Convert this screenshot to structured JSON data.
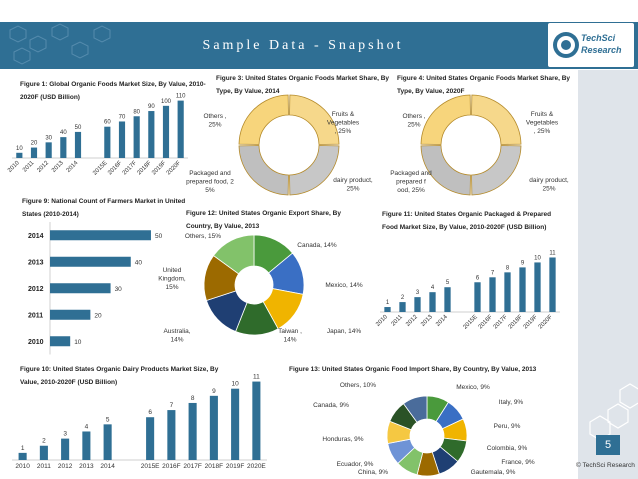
{
  "page": {
    "title": "Sample Data - Snapshot",
    "logo_line1": "TechSci",
    "logo_line2": "Research",
    "page_number": "5",
    "copyright": "© TechSci Research",
    "colors": {
      "brand": "#2f6f94",
      "bar": "#2f6f94",
      "label": "#333333"
    }
  },
  "chart_data": [
    {
      "id": "fig1",
      "type": "bar",
      "title": "Figure 1: Global Organic Foods Market Size, By Value, 2010-2020F (USD Billion)",
      "categories": [
        "2010",
        "2011",
        "2012",
        "2013",
        "2014",
        "2015E",
        "2016F",
        "2017F",
        "2018F",
        "2019F",
        "2020F"
      ],
      "values": [
        10,
        20,
        30,
        40,
        50,
        60,
        70,
        80,
        90,
        100,
        110
      ],
      "ylim": [
        0,
        115
      ]
    },
    {
      "id": "fig3",
      "type": "pie",
      "donut": true,
      "title": "Figure 3: United States Organic Foods Market Share, By Type, By Value, 2014",
      "slices": [
        {
          "label": "Fruits & Vegetables, 25%",
          "value": 25,
          "color": "#f6d88b"
        },
        {
          "label": "dairy product, 25%",
          "value": 25,
          "color": "#c7c7c7"
        },
        {
          "label": "Packaged and prepared food, 25%",
          "value": 25,
          "color": "#bfbfbf"
        },
        {
          "label": "Others , 25%",
          "value": 25,
          "color": "#f7d57c"
        }
      ]
    },
    {
      "id": "fig4",
      "type": "pie",
      "donut": true,
      "title": "Figure 4: United States Organic Foods Market Share, By Type, By Value, 2020F",
      "slices": [
        {
          "label": "Fruits & Vegetables , 25%",
          "value": 25,
          "color": "#f6d88b"
        },
        {
          "label": "dairy product, 25%",
          "value": 25,
          "color": "#c7c7c7"
        },
        {
          "label": "Packaged and prepared food, 25%",
          "value": 25,
          "color": "#bfbfbf"
        },
        {
          "label": "Others , 25%",
          "value": 25,
          "color": "#f7d57c"
        }
      ]
    },
    {
      "id": "fig9",
      "type": "bar",
      "orientation": "horizontal",
      "title": "Figure 9: National Count of Farmers Market in United States (2010-2014)",
      "categories": [
        "2014",
        "2013",
        "2012",
        "2011",
        "2010"
      ],
      "values": [
        50,
        40,
        30,
        20,
        10
      ],
      "xlim": [
        0,
        52
      ]
    },
    {
      "id": "fig12",
      "type": "pie",
      "donut": true,
      "title": "Figure 12: United States Organic Export Share, By Country, By Value, 2013",
      "slices": [
        {
          "label": "Canada, 14%",
          "value": 14,
          "color": "#4a9a3c"
        },
        {
          "label": "Mexico, 14%",
          "value": 14,
          "color": "#3a6fc4"
        },
        {
          "label": "Japan, 14%",
          "value": 14,
          "color": "#f0b400"
        },
        {
          "label": "Taiwan , 14%",
          "value": 14,
          "color": "#2f6b2b"
        },
        {
          "label": "Australia, 14%",
          "value": 14,
          "color": "#1f3f73"
        },
        {
          "label": "United Kingdom, 15%",
          "value": 15,
          "color": "#9c6a00"
        },
        {
          "label": "Others, 15%",
          "value": 15,
          "color": "#82c26a"
        }
      ]
    },
    {
      "id": "fig11",
      "type": "bar",
      "title": "Figure 11: United States Organic Packaged & Prepared Food Market Size, By Value, 2010-2020F (USD Billion)",
      "categories": [
        "2010",
        "2011",
        "2012",
        "2013",
        "2014",
        "2015E",
        "2016F",
        "2017F",
        "2018F",
        "2019F",
        "2020F"
      ],
      "values": [
        1,
        2,
        3,
        4,
        5,
        6,
        7,
        8,
        9,
        10,
        11
      ],
      "ylim": [
        0,
        11.5
      ]
    },
    {
      "id": "fig10",
      "type": "bar",
      "title": "Figure 10: United States Organic Dairy Products Market Size, By Value, 2010-2020F (USD Billion)",
      "categories": [
        "2010",
        "2011",
        "2012",
        "2013",
        "2014",
        "2015E",
        "2016F",
        "2017F",
        "2018F",
        "2019F",
        "2020E"
      ],
      "values": [
        1,
        2,
        3,
        4,
        5,
        6,
        7,
        8,
        9,
        10,
        11
      ],
      "ylim": [
        0,
        11.5
      ]
    },
    {
      "id": "fig13",
      "type": "pie",
      "donut": true,
      "title": "Figure 13: United States Organic Food Import Share, By Country, By Value, 2013",
      "slices": [
        {
          "label": "Mexico, 9%",
          "value": 9,
          "color": "#4a9a3c"
        },
        {
          "label": "Italy, 9%",
          "value": 9,
          "color": "#3a6fc4"
        },
        {
          "label": "Peru, 9%",
          "value": 9,
          "color": "#f0b400"
        },
        {
          "label": "Colombia, 9%",
          "value": 9,
          "color": "#2f6b2b"
        },
        {
          "label": "France, 9%",
          "value": 9,
          "color": "#1f3f73"
        },
        {
          "label": "Gautemala, 9%",
          "value": 9,
          "color": "#9c6a00"
        },
        {
          "label": "China, 9%",
          "value": 9,
          "color": "#82c26a"
        },
        {
          "label": "Ecuador, 9%",
          "value": 9,
          "color": "#6e93d6"
        },
        {
          "label": "Honduras, 9%",
          "value": 9,
          "color": "#f5c842"
        },
        {
          "label": "Canada, 9%",
          "value": 9,
          "color": "#2a5226"
        },
        {
          "label": "Others, 10%",
          "value": 10,
          "color": "#4a6c9b"
        }
      ]
    }
  ]
}
